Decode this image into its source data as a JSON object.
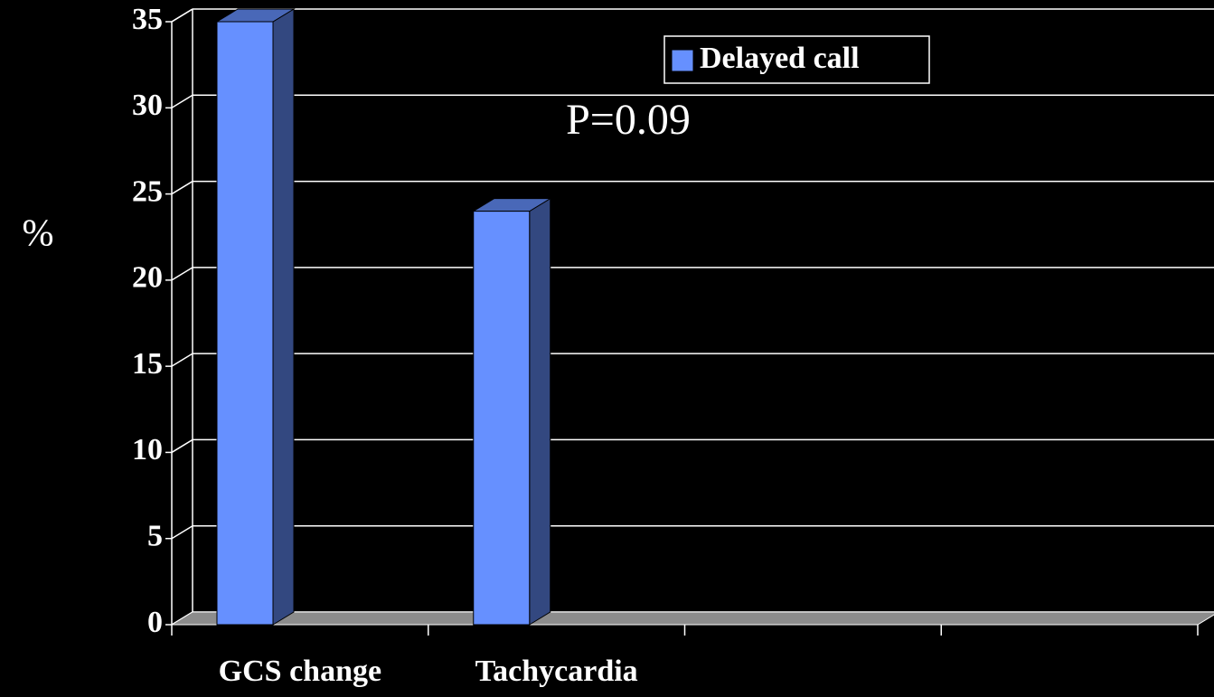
{
  "chart_data": {
    "type": "bar",
    "y_label": "%",
    "annotation": "P=0.09",
    "categories": [
      "GCS change",
      "Tachycardia",
      null,
      null
    ],
    "series": [
      {
        "name": "Delayed call",
        "color": "#6690ff",
        "values": [
          35,
          24,
          null,
          null
        ]
      }
    ],
    "ylim": [
      0,
      35
    ],
    "yticks": [
      0,
      5,
      10,
      15,
      20,
      25,
      30,
      35
    ],
    "grid": true,
    "legend": "top"
  }
}
